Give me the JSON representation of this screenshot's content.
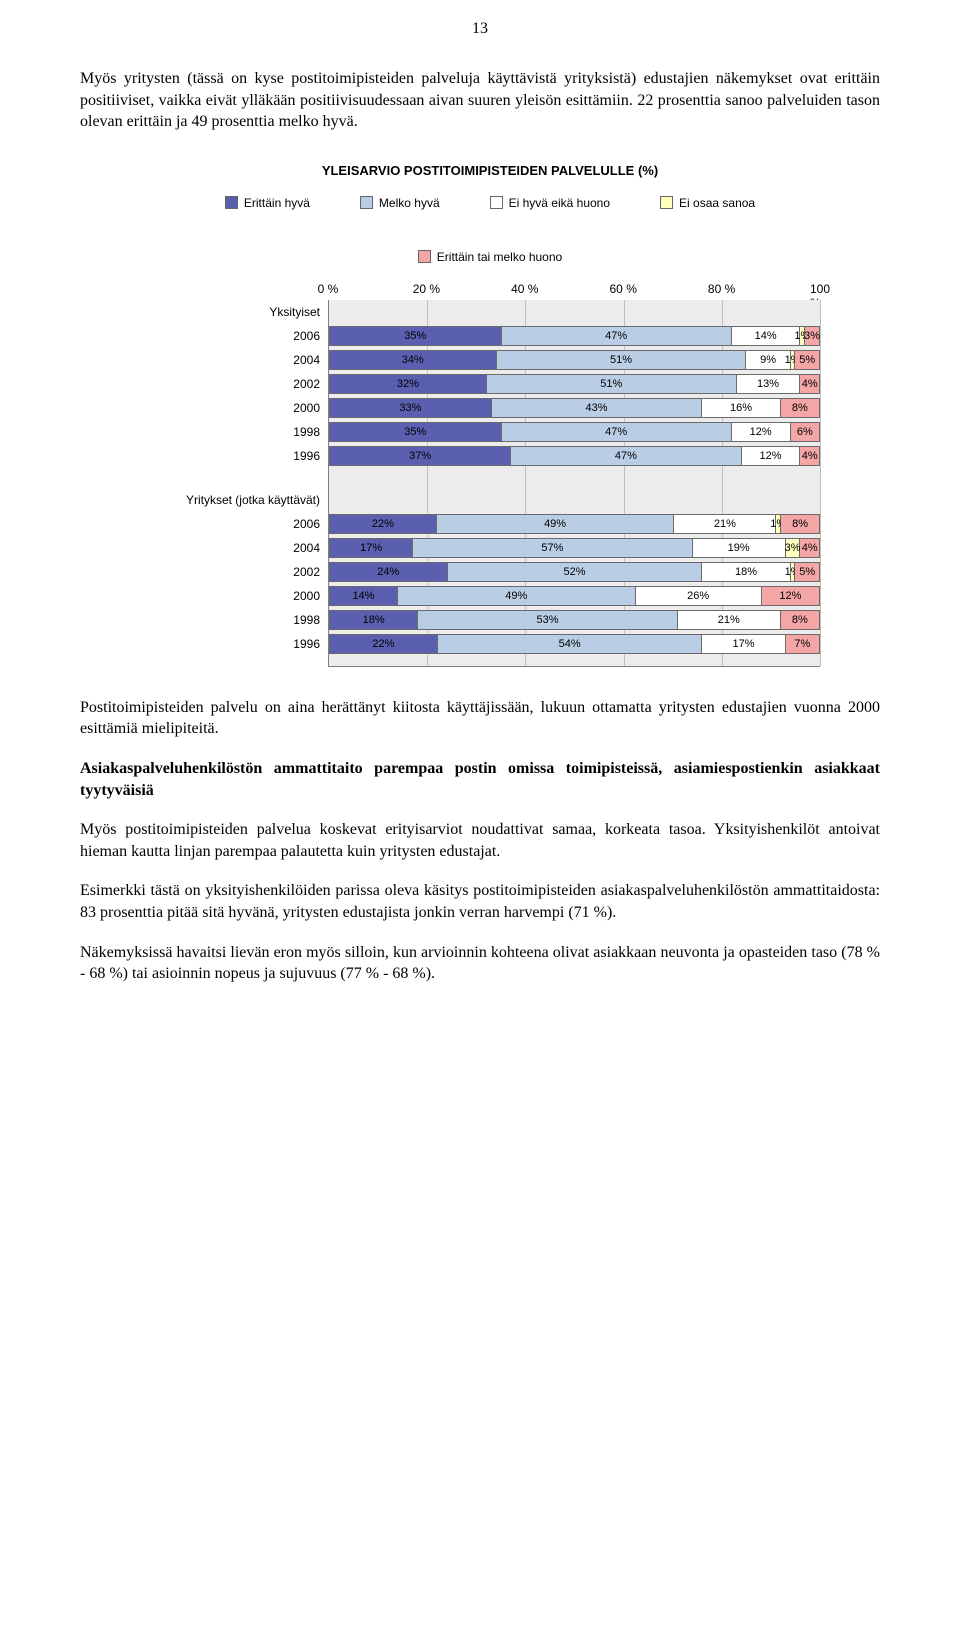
{
  "page_number": "13",
  "p1": "Myös yritysten (tässä on kyse postitoimipisteiden palveluja käyttävistä yrityksistä) edustajien näkemykset ovat erittäin positiiviset, vaikka eivät ylläkään positiivisuudessaan aivan suuren yleisön esittämiin. 22 prosenttia sanoo palveluiden tason olevan erittäin ja 49 prosenttia melko hyvä.",
  "p2": "Postitoimipisteiden palvelu on aina herättänyt kiitosta käyttäjissään, lukuun ottamatta yritysten edustajien vuonna 2000 esittämiä mielipiteitä.",
  "p3_bold": "Asiakaspalveluhenkilöstön ammattitaito parempaa postin omissa toimipisteissä, asiamiespostienkin asiakkaat tyytyväisiä",
  "p4": "Myös postitoimipisteiden palvelua koskevat erityisarviot noudattivat samaa, korkeata tasoa. Yksityishenkilöt antoivat hieman kautta linjan parempaa palautetta kuin yritysten edustajat.",
  "p5": "Esimerkki tästä on yksityishenkilöiden parissa oleva käsitys postitoimipisteiden asiakaspalveluhenkilöstön ammattitaidosta: 83 prosenttia pitää sitä hyvänä, yritysten edustajista jonkin verran harvempi (71 %).",
  "p6": "Näkemyksissä havaitsi lievän eron myös silloin, kun arvioinnin kohteena olivat asiakkaan neuvonta ja opasteiden taso (78 % - 68 %) tai asioinnin nopeus ja sujuvuus (77 % - 68 %).",
  "chart": {
    "title": "YLEISARVIO POSTITOIMIPISTEIDEN PALVELULLE (%)",
    "legend": {
      "items": [
        {
          "label": "Erittäin hyvä",
          "color": "#5b5fb0"
        },
        {
          "label": "Melko hyvä",
          "color": "#b9cde5"
        },
        {
          "label": "Ei hyvä eikä huono",
          "color": "#ffffff"
        },
        {
          "label": "Ei osaa sanoa",
          "color": "#ffffc0"
        },
        {
          "label": "Erittäin tai melko huono",
          "color": "#f4a6a6"
        }
      ]
    },
    "axis": {
      "ticks": [
        "0 %",
        "20 %",
        "40 %",
        "60 %",
        "80 %",
        "100 %"
      ],
      "positions": [
        0,
        20,
        40,
        60,
        80,
        100
      ]
    },
    "groups": [
      {
        "name": "Yksityiset",
        "rows": [
          {
            "year": "2006",
            "segs": [
              {
                "v": 35,
                "l": "35%"
              },
              {
                "v": 47,
                "l": "47%"
              },
              {
                "v": 14,
                "l": "14%"
              },
              {
                "v": 1,
                "l": "1%"
              },
              {
                "v": 3,
                "l": "3%"
              }
            ]
          },
          {
            "year": "2004",
            "segs": [
              {
                "v": 34,
                "l": "34%"
              },
              {
                "v": 51,
                "l": "51%"
              },
              {
                "v": 9,
                "l": "9%"
              },
              {
                "v": 1,
                "l": "1%"
              },
              {
                "v": 5,
                "l": "5%"
              }
            ]
          },
          {
            "year": "2002",
            "segs": [
              {
                "v": 32,
                "l": "32%"
              },
              {
                "v": 51,
                "l": "51%"
              },
              {
                "v": 13,
                "l": "13%"
              },
              {
                "v": 0,
                "l": ""
              },
              {
                "v": 4,
                "l": "4%"
              }
            ]
          },
          {
            "year": "2000",
            "segs": [
              {
                "v": 33,
                "l": "33%"
              },
              {
                "v": 43,
                "l": "43%"
              },
              {
                "v": 16,
                "l": "16%"
              },
              {
                "v": 0,
                "l": ""
              },
              {
                "v": 8,
                "l": "8%"
              }
            ]
          },
          {
            "year": "1998",
            "segs": [
              {
                "v": 35,
                "l": "35%"
              },
              {
                "v": 47,
                "l": "47%"
              },
              {
                "v": 12,
                "l": "12%"
              },
              {
                "v": 0,
                "l": ""
              },
              {
                "v": 6,
                "l": "6%"
              }
            ]
          },
          {
            "year": "1996",
            "segs": [
              {
                "v": 37,
                "l": "37%"
              },
              {
                "v": 47,
                "l": "47%"
              },
              {
                "v": 12,
                "l": "12%"
              },
              {
                "v": 0,
                "l": ""
              },
              {
                "v": 4,
                "l": "4%"
              }
            ]
          }
        ]
      },
      {
        "name": "Yritykset (jotka käyttävät)",
        "rows": [
          {
            "year": "2006",
            "segs": [
              {
                "v": 22,
                "l": "22%"
              },
              {
                "v": 49,
                "l": "49%"
              },
              {
                "v": 21,
                "l": "21%"
              },
              {
                "v": 1,
                "l": "1%"
              },
              {
                "v": 8,
                "l": "8%"
              }
            ]
          },
          {
            "year": "2004",
            "segs": [
              {
                "v": 17,
                "l": "17%"
              },
              {
                "v": 57,
                "l": "57%"
              },
              {
                "v": 19,
                "l": "19%"
              },
              {
                "v": 3,
                "l": "3%"
              },
              {
                "v": 4,
                "l": "4%"
              }
            ]
          },
          {
            "year": "2002",
            "segs": [
              {
                "v": 24,
                "l": "24%"
              },
              {
                "v": 52,
                "l": "52%"
              },
              {
                "v": 18,
                "l": "18%"
              },
              {
                "v": 1,
                "l": "1%"
              },
              {
                "v": 5,
                "l": "5%"
              }
            ]
          },
          {
            "year": "2000",
            "segs": [
              {
                "v": 14,
                "l": "14%"
              },
              {
                "v": 49,
                "l": "49%"
              },
              {
                "v": 26,
                "l": "26%"
              },
              {
                "v": 0,
                "l": ""
              },
              {
                "v": 12,
                "l": "12%"
              }
            ]
          },
          {
            "year": "1998",
            "segs": [
              {
                "v": 18,
                "l": "18%"
              },
              {
                "v": 53,
                "l": "53%"
              },
              {
                "v": 21,
                "l": "21%"
              },
              {
                "v": 0,
                "l": ""
              },
              {
                "v": 8,
                "l": "8%"
              }
            ]
          },
          {
            "year": "1996",
            "segs": [
              {
                "v": 22,
                "l": "22%"
              },
              {
                "v": 54,
                "l": "54%"
              },
              {
                "v": 17,
                "l": "17%"
              },
              {
                "v": 0,
                "l": ""
              },
              {
                "v": 7,
                "l": "7%"
              }
            ]
          }
        ]
      }
    ],
    "background_color": "#ececec",
    "grid_color": "#bfbfbf"
  }
}
